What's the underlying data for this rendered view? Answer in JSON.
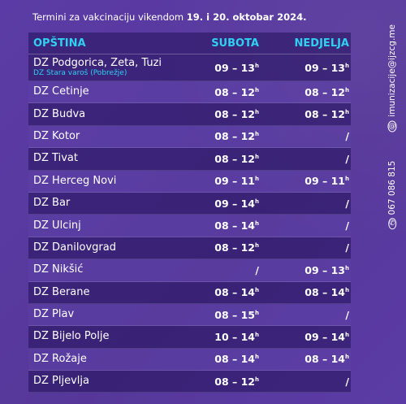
{
  "heading": {
    "prefix": "Termini za vakcinaciju vikendom",
    "dates": "19. i 20. oktobar 2024."
  },
  "table": {
    "headers": {
      "name": "OPŠTINA",
      "saturday": "SUBOTA",
      "sunday": "NEDJELJA"
    },
    "rows": [
      {
        "name": "DZ Podgorica, Zeta, Tuzi",
        "sub": "DZ Stara varoš (Pobrežje)",
        "saturday": "09 – 13",
        "saturday_sup": "h",
        "sunday": "09 – 13",
        "sunday_sup": "h"
      },
      {
        "name": "DZ Cetinje",
        "saturday": "08 – 12",
        "saturday_sup": "h",
        "sunday": "08 – 12",
        "sunday_sup": "h"
      },
      {
        "name": "DZ Budva",
        "saturday": "08 – 12",
        "saturday_sup": "h",
        "sunday": "08 – 12",
        "sunday_sup": "h"
      },
      {
        "name": "DZ Kotor",
        "saturday": "08 – 12",
        "saturday_sup": "h",
        "sunday": "/",
        "sunday_sup": ""
      },
      {
        "name": "DZ Tivat",
        "saturday": "08 – 12",
        "saturday_sup": "h",
        "sunday": "/",
        "sunday_sup": ""
      },
      {
        "name": "DZ Herceg Novi",
        "saturday": "09 – 11",
        "saturday_sup": "h",
        "sunday": "09 – 11",
        "sunday_sup": "h"
      },
      {
        "name": "DZ Bar",
        "saturday": "09 – 14",
        "saturday_sup": "h",
        "sunday": "/",
        "sunday_sup": ""
      },
      {
        "name": "DZ Ulcinj",
        "saturday": "08 – 14",
        "saturday_sup": "h",
        "sunday": "/",
        "sunday_sup": ""
      },
      {
        "name": "DZ Danilovgrad",
        "saturday": "08 – 12",
        "saturday_sup": "h",
        "sunday": "/",
        "sunday_sup": ""
      },
      {
        "name": "DZ Nikšić",
        "saturday": "/",
        "saturday_sup": "",
        "sunday": "09 – 13",
        "sunday_sup": "h"
      },
      {
        "name": "DZ Berane",
        "saturday": "08 – 14",
        "saturday_sup": "h",
        "sunday": "08 – 14",
        "sunday_sup": "h"
      },
      {
        "name": "DZ Plav",
        "saturday": "08 – 15",
        "saturday_sup": "h",
        "sunday": "/",
        "sunday_sup": ""
      },
      {
        "name": "DZ Bijelo Polje",
        "saturday": "10 – 14",
        "saturday_sup": "h",
        "sunday": "09 – 14",
        "sunday_sup": "h"
      },
      {
        "name": "DZ Rožaje",
        "saturday": "08 – 14",
        "saturday_sup": "h",
        "sunday": "08 – 14",
        "sunday_sup": "h"
      },
      {
        "name": "DZ Pljevlja",
        "saturday": "08 – 12",
        "saturday_sup": "h",
        "sunday": "/",
        "sunday_sup": ""
      }
    ]
  },
  "contact": {
    "phone": "067 086 815",
    "email": "imunizacije@ijzcg.me",
    "phone_icon": "phone-icon",
    "email_icon": "at-icon"
  },
  "colors": {
    "background": "#5a3aa3",
    "accent": "#2fd0f0",
    "row_dark": "#2a1566"
  }
}
